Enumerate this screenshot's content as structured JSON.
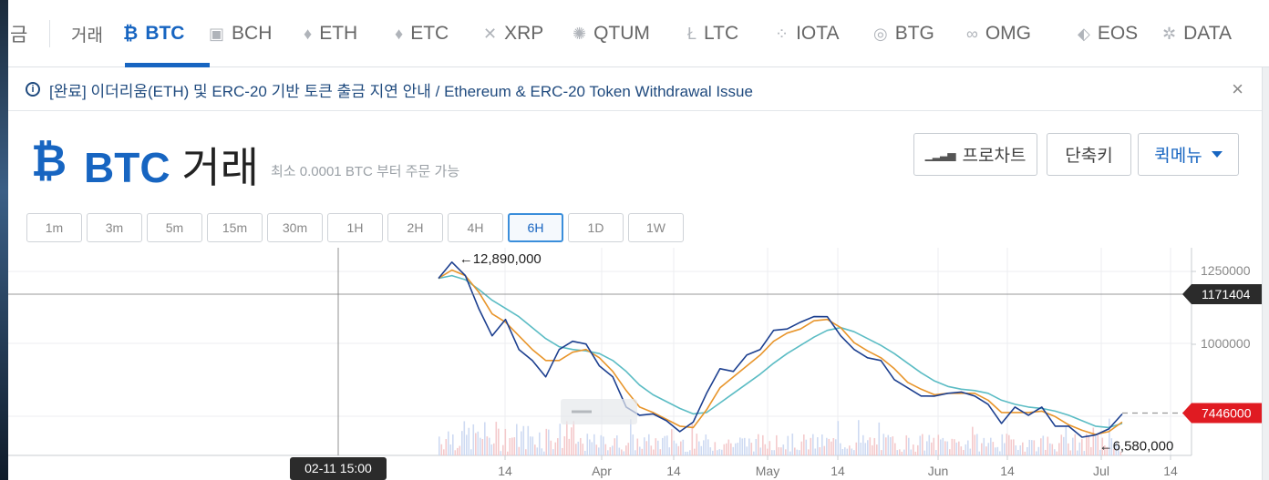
{
  "tabs": {
    "partial_left": "금",
    "exchange": "거래",
    "coins": [
      {
        "label": "BTC",
        "icon": "bitcoin-icon",
        "glyph": "₿",
        "x": 135,
        "active": true
      },
      {
        "label": "BCH",
        "icon": "bch-icon",
        "glyph": "▣",
        "x": 229
      },
      {
        "label": "ETH",
        "icon": "ethereum-icon",
        "glyph": "♦",
        "x": 333
      },
      {
        "label": "ETC",
        "icon": "ethereum-classic-icon",
        "glyph": "♦",
        "x": 433
      },
      {
        "label": "XRP",
        "icon": "ripple-icon",
        "glyph": "✕",
        "x": 530
      },
      {
        "label": "QTUM",
        "icon": "qtum-icon",
        "glyph": "✺",
        "x": 628
      },
      {
        "label": "LTC",
        "icon": "litecoin-icon",
        "glyph": "Ł",
        "x": 754
      },
      {
        "label": "IOTA",
        "icon": "iota-icon",
        "glyph": "⁘",
        "x": 850
      },
      {
        "label": "BTG",
        "icon": "bitcoin-gold-icon",
        "glyph": "◎",
        "x": 958
      },
      {
        "label": "OMG",
        "icon": "omisego-icon",
        "glyph": "∞",
        "x": 1060
      },
      {
        "label": "EOS",
        "icon": "eos-icon",
        "glyph": "⬖",
        "x": 1182
      },
      {
        "label": "DATA",
        "icon": "data-icon",
        "glyph": "✲",
        "x": 1275
      }
    ]
  },
  "notice": {
    "text": "[완료] 이더리움(ETH) 및 ERC-20 기반 토큰 출금 지연 안내 / Ethereum & ERC-20 Token Withdrawal Issue",
    "close": "×"
  },
  "header": {
    "coin": "BTC",
    "title_suffix": "거래",
    "min_order": "최소 0.0001 BTC 부터 주문 가능",
    "buttons": {
      "pro_chart": "프로차트",
      "shortcuts": "단축키",
      "quick_menu": "퀵메뉴"
    }
  },
  "intervals": [
    "1m",
    "3m",
    "5m",
    "15m",
    "30m",
    "1H",
    "2H",
    "4H",
    "6H",
    "1D",
    "1W"
  ],
  "active_interval": "6H",
  "colors": {
    "accent": "#1765c1",
    "ma_fast": "#e8952b",
    "ma_slow": "#5bbcc4",
    "price_line": "#1c3f8f",
    "current_price_bg": "#e01b22",
    "crosshair_label_bg": "#2b2b2b"
  },
  "chart_data": {
    "type": "line",
    "x_ticks": [
      "14",
      "Apr",
      "14",
      "May",
      "14",
      "Jun",
      "14",
      "Jul",
      "14"
    ],
    "y_ticks": [
      "1250000",
      "1000000"
    ],
    "ylim": [
      6000000,
      13250000
    ],
    "crosshair_price": "1171404",
    "current_price": "7446000",
    "crosshair_time": "02-11 15:00",
    "annotations": {
      "high": "←12,890,000",
      "low": "←6,580,000"
    },
    "high_value": 12890000,
    "low_value": 6580000,
    "series": [
      {
        "values": [
          12400000,
          12890000,
          12600000,
          11200000,
          10400000,
          10800000,
          9900000,
          9300000,
          8900000,
          9700000,
          10200000,
          9900000,
          9300000,
          8700000,
          7800000,
          7300000,
          7550000,
          7100000,
          6900000,
          7050000,
          8300000,
          9000000,
          9100000,
          9500000,
          9900000,
          10400000,
          10650000,
          10700000,
          11100000,
          10900000,
          10400000,
          9700000,
          9600000,
          9300000,
          8800000,
          8300000,
          8200000,
          8000000,
          8300000,
          8150000,
          8200000,
          7700000,
          7200000,
          7600000,
          7500000,
          7600000,
          7100000,
          6900000,
          6700000,
          6580000,
          7000000,
          7446000
        ]
      },
      {
        "values": [
          12400000,
          12700000,
          12500000,
          11900000,
          11100000,
          10800000,
          10300000,
          9800000,
          9400000,
          9400000,
          9700000,
          9800000,
          9500000,
          9000000,
          8300000,
          7700000,
          7500000,
          7250000,
          7000000,
          6950000,
          7600000,
          8400000,
          8800000,
          9200000,
          9600000,
          10100000,
          10400000,
          10550000,
          10850000,
          10900000,
          10600000,
          10050000,
          9750000,
          9500000,
          9100000,
          8600000,
          8350000,
          8150000,
          8200000,
          8200000,
          8200000,
          7950000,
          7500000,
          7500000,
          7500000,
          7550000,
          7350000,
          7050000,
          6850000,
          6700000,
          6800000,
          7150000
        ]
      },
      {
        "values": [
          12400000,
          12500000,
          12350000,
          12000000,
          11600000,
          11300000,
          11000000,
          10600000,
          10200000,
          9900000,
          9800000,
          9750000,
          9650000,
          9400000,
          9000000,
          8500000,
          8150000,
          7900000,
          7650000,
          7450000,
          7500000,
          7850000,
          8200000,
          8550000,
          8900000,
          9300000,
          9650000,
          9950000,
          10250000,
          10500000,
          10600000,
          10450000,
          10200000,
          9950000,
          9650000,
          9300000,
          8950000,
          8650000,
          8450000,
          8350000,
          8300000,
          8200000,
          7950000,
          7800000,
          7700000,
          7650000,
          7550000,
          7400000,
          7200000,
          7000000,
          6950000,
          7100000
        ]
      }
    ]
  }
}
